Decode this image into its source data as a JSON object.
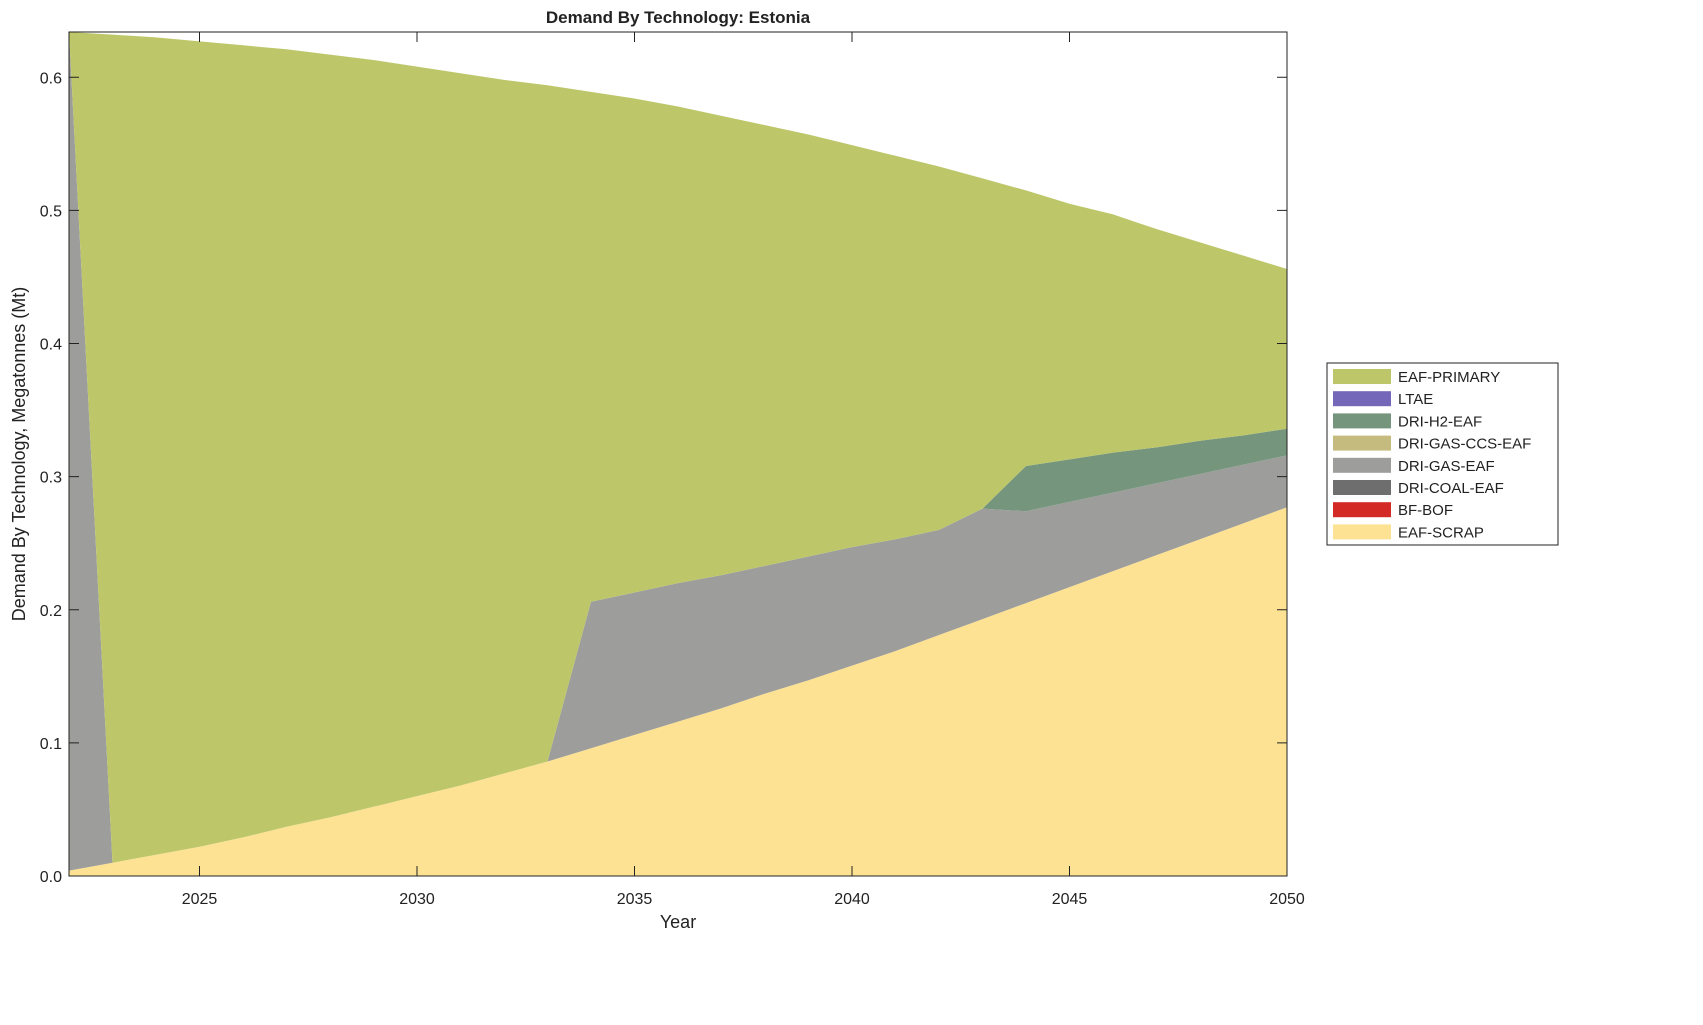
{
  "chart_data": {
    "type": "area",
    "stacked": true,
    "title": "Demand By Technology: Estonia",
    "xlabel": "Year",
    "ylabel": "Demand By Technology, Megatonnes (Mt)",
    "xlim": [
      2022,
      2050
    ],
    "ylim": [
      0,
      0.634
    ],
    "xticks": [
      2025,
      2030,
      2035,
      2040,
      2045,
      2050
    ],
    "yticks": [
      0.0,
      0.1,
      0.2,
      0.3,
      0.4,
      0.5,
      0.6
    ],
    "ytick_labels": [
      "0.0",
      "0.1",
      "0.2",
      "0.3",
      "0.4",
      "0.5",
      "0.6"
    ],
    "grid": false,
    "legend_position": "right",
    "x": [
      2022,
      2023,
      2024,
      2025,
      2026,
      2027,
      2028,
      2029,
      2030,
      2031,
      2032,
      2033,
      2034,
      2035,
      2036,
      2037,
      2038,
      2039,
      2040,
      2041,
      2042,
      2043,
      2044,
      2045,
      2046,
      2047,
      2048,
      2049,
      2050
    ],
    "series": [
      {
        "name": "EAF-SCRAP",
        "color": "#fde293",
        "values": [
          0.004,
          0.01,
          0.016,
          0.022,
          0.029,
          0.037,
          0.044,
          0.052,
          0.06,
          0.068,
          0.077,
          0.086,
          0.096,
          0.106,
          0.116,
          0.126,
          0.137,
          0.147,
          0.158,
          0.169,
          0.181,
          0.193,
          0.205,
          0.217,
          0.229,
          0.241,
          0.253,
          0.265,
          0.277
        ]
      },
      {
        "name": "BF-BOF",
        "color": "#d42a25",
        "values": [
          0,
          0,
          0,
          0,
          0,
          0,
          0,
          0,
          0,
          0,
          0,
          0,
          0,
          0,
          0,
          0,
          0,
          0,
          0,
          0,
          0,
          0,
          0,
          0,
          0,
          0,
          0,
          0,
          0
        ]
      },
      {
        "name": "DRI-COAL-EAF",
        "color": "#6e6e6e",
        "values": [
          0,
          0,
          0,
          0,
          0,
          0,
          0,
          0,
          0,
          0,
          0,
          0,
          0,
          0,
          0,
          0,
          0,
          0,
          0,
          0,
          0,
          0,
          0,
          0,
          0,
          0,
          0,
          0,
          0
        ]
      },
      {
        "name": "DRI-GAS-EAF",
        "color": "#9d9d9b",
        "values": [
          0.63,
          0,
          0,
          0,
          0,
          0,
          0,
          0,
          0,
          0,
          0,
          0,
          0.11,
          0.107,
          0.104,
          0.1,
          0.096,
          0.093,
          0.089,
          0.084,
          0.079,
          0.083,
          0.069,
          0.064,
          0.059,
          0.054,
          0.049,
          0.044,
          0.039
        ]
      },
      {
        "name": "DRI-GAS-CCS-EAF",
        "color": "#c6bb7e",
        "values": [
          0,
          0,
          0,
          0,
          0,
          0,
          0,
          0,
          0,
          0,
          0,
          0,
          0,
          0,
          0,
          0,
          0,
          0,
          0,
          0,
          0,
          0,
          0,
          0,
          0,
          0,
          0,
          0,
          0
        ]
      },
      {
        "name": "DRI-H2-EAF",
        "color": "#75967c",
        "values": [
          0,
          0,
          0,
          0,
          0,
          0,
          0,
          0,
          0,
          0,
          0,
          0,
          0,
          0,
          0,
          0,
          0,
          0,
          0,
          0,
          0,
          0,
          0.034,
          0.032,
          0.03,
          0.027,
          0.025,
          0.022,
          0.02
        ]
      },
      {
        "name": "LTAE",
        "color": "#7466b8",
        "values": [
          0,
          0,
          0,
          0,
          0,
          0,
          0,
          0,
          0,
          0,
          0,
          0,
          0,
          0,
          0,
          0,
          0,
          0,
          0,
          0,
          0,
          0,
          0,
          0,
          0,
          0,
          0,
          0,
          0
        ]
      },
      {
        "name": "EAF-PRIMARY",
        "color": "#bdc76a",
        "values": [
          0,
          0.622,
          0.614,
          0.605,
          0.595,
          0.584,
          0.573,
          0.561,
          0.548,
          0.535,
          0.521,
          0.508,
          0.383,
          0.371,
          0.358,
          0.345,
          0.331,
          0.317,
          0.302,
          0.288,
          0.273,
          0.248,
          0.207,
          0.192,
          0.179,
          0.164,
          0.149,
          0.135,
          0.12
        ]
      }
    ],
    "legend_order": [
      "EAF-PRIMARY",
      "LTAE",
      "DRI-H2-EAF",
      "DRI-GAS-CCS-EAF",
      "DRI-GAS-EAF",
      "DRI-COAL-EAF",
      "BF-BOF",
      "EAF-SCRAP"
    ]
  }
}
